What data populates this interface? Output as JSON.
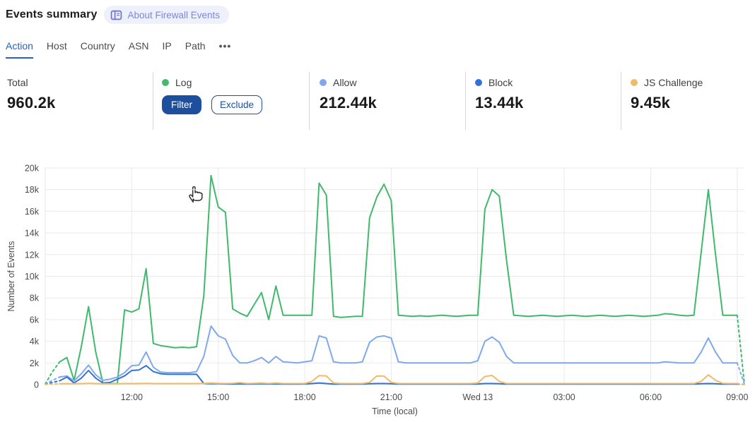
{
  "header": {
    "title": "Events summary",
    "about_label": "About Firewall Events"
  },
  "tabs": {
    "items": [
      "Action",
      "Host",
      "Country",
      "ASN",
      "IP",
      "Path"
    ],
    "more": "•••",
    "active": "Action"
  },
  "stats": {
    "total": {
      "label": "Total",
      "value": "960.2k"
    },
    "log": {
      "label": "Log",
      "color": "#45b96e",
      "filter_label": "Filter",
      "exclude_label": "Exclude"
    },
    "allow": {
      "label": "Allow",
      "color": "#7fa9ec",
      "value": "212.44k"
    },
    "block": {
      "label": "Block",
      "color": "#3372d4",
      "value": "13.44k"
    },
    "js_challenge": {
      "label": "JS Challenge",
      "color": "#f0bb69",
      "value": "9.45k"
    }
  },
  "icons": {
    "about": "book-icon",
    "tabs_overflow": "ellipsis-icon",
    "pointer": "hand-cursor-icon",
    "legend": "color-dot"
  },
  "colors": {
    "accent_blue": "#2661c5",
    "button_navy": "#1d4f9c",
    "grid": "#e9e9e9",
    "axis_text": "#4a4a4a",
    "divider": "#d8d8d8",
    "badge_bg": "#eef0fb",
    "badge_text": "#7d86e0"
  },
  "chart_data": {
    "type": "line",
    "title": "",
    "xlabel": "Time (local)",
    "ylabel": "Number of Events",
    "values_unit": "thousands",
    "ylim": [
      0,
      20
    ],
    "yticks": [
      {
        "v": 0,
        "label": "0"
      },
      {
        "v": 2,
        "label": "2k"
      },
      {
        "v": 4,
        "label": "4k"
      },
      {
        "v": 6,
        "label": "6k"
      },
      {
        "v": 8,
        "label": "8k"
      },
      {
        "v": 10,
        "label": "10k"
      },
      {
        "v": 12,
        "label": "12k"
      },
      {
        "v": 14,
        "label": "14k"
      },
      {
        "v": 16,
        "label": "16k"
      },
      {
        "v": 18,
        "label": "18k"
      },
      {
        "v": 20,
        "label": "20k"
      }
    ],
    "x_start": "09:00",
    "x_step_min": 15,
    "x_total_min": 1455,
    "xticks": [
      {
        "label": "12:00",
        "min": 180
      },
      {
        "label": "15:00",
        "min": 360
      },
      {
        "label": "18:00",
        "min": 540
      },
      {
        "label": "21:00",
        "min": 720
      },
      {
        "label": "Wed 13",
        "min": 900
      },
      {
        "label": "03:00",
        "min": 1080
      },
      {
        "label": "06:00",
        "min": 1260
      },
      {
        "label": "09:00",
        "min": 1440
      }
    ],
    "grid": true,
    "legend_position": "stats-row",
    "dash_head_points": 2,
    "dash_tail_points": 1,
    "series": [
      {
        "name": "Log",
        "color": "#3fb96b",
        "values": [
          0.05,
          1.2,
          2.1,
          2.5,
          0.4,
          3.5,
          7.2,
          3,
          0.15,
          0.1,
          0.1,
          6.9,
          6.7,
          7,
          10.7,
          3.8,
          3.6,
          3.5,
          3.4,
          3.45,
          3.4,
          3.5,
          8.2,
          19.3,
          16.4,
          15.9,
          7,
          6.6,
          6.3,
          7.4,
          8.5,
          6,
          9.1,
          6.4,
          6.4,
          6.4,
          6.4,
          6.4,
          18.6,
          17.5,
          6.3,
          6.2,
          6.25,
          6.3,
          6.3,
          15.4,
          17.3,
          18.5,
          17,
          6.4,
          6.35,
          6.3,
          6.35,
          6.3,
          6.35,
          6.4,
          6.35,
          6.3,
          6.35,
          6.4,
          6.4,
          16.2,
          18,
          17.4,
          11.5,
          6.4,
          6.35,
          6.3,
          6.35,
          6.4,
          6.35,
          6.3,
          6.35,
          6.4,
          6.35,
          6.3,
          6.35,
          6.4,
          6.35,
          6.3,
          6.35,
          6.4,
          6.35,
          6.3,
          6.35,
          6.4,
          6.55,
          6.5,
          6.4,
          6.35,
          6.4,
          12.2,
          18,
          12,
          6.4,
          6.4,
          6.4,
          0.05
        ]
      },
      {
        "name": "Allow",
        "color": "#7fa9ec",
        "values": [
          0.05,
          0.4,
          0.7,
          0.8,
          0.35,
          1,
          1.8,
          0.9,
          0.4,
          0.5,
          0.7,
          1.1,
          1.75,
          1.8,
          3,
          1.6,
          1.15,
          1.1,
          1.1,
          1.1,
          1.1,
          1.2,
          2.6,
          5.4,
          4.5,
          4.2,
          2.7,
          2,
          2,
          2.2,
          2.5,
          2,
          2.6,
          2.1,
          2.05,
          2,
          2.1,
          2.2,
          4.5,
          4.3,
          2.1,
          2,
          2,
          2,
          2.1,
          3.9,
          4.4,
          4.5,
          4.3,
          2.1,
          2,
          2,
          2,
          2,
          2,
          2,
          2,
          2,
          2,
          2,
          2.2,
          4,
          4.4,
          3.9,
          2.6,
          2,
          2,
          2,
          2,
          2,
          2,
          2,
          2,
          2,
          2,
          2,
          2,
          2,
          2,
          2,
          2,
          2,
          2,
          2,
          2,
          2,
          2.1,
          2.05,
          2,
          2,
          2,
          3,
          4.3,
          3,
          2,
          2,
          2,
          0.05
        ]
      },
      {
        "name": "Block",
        "color": "#3372d4",
        "values": [
          0.02,
          0.2,
          0.35,
          0.7,
          0.15,
          0.6,
          1.3,
          0.6,
          0.15,
          0.2,
          0.5,
          0.8,
          1.3,
          1.35,
          1.75,
          1.2,
          1,
          0.95,
          0.95,
          0.95,
          0.95,
          0.95,
          0.1,
          0.08,
          0.08,
          0.06,
          0.05,
          0.07,
          0.05,
          0.06,
          0.08,
          0.05,
          0.07,
          0.05,
          0.05,
          0.05,
          0.06,
          0.1,
          0.15,
          0.1,
          0.05,
          0.05,
          0.05,
          0.05,
          0.05,
          0.08,
          0.1,
          0.1,
          0.08,
          0.05,
          0.05,
          0.05,
          0.05,
          0.05,
          0.05,
          0.05,
          0.05,
          0.05,
          0.05,
          0.05,
          0.06,
          0.1,
          0.1,
          0.08,
          0.05,
          0.05,
          0.05,
          0.05,
          0.05,
          0.05,
          0.05,
          0.05,
          0.05,
          0.05,
          0.05,
          0.05,
          0.05,
          0.05,
          0.05,
          0.05,
          0.05,
          0.05,
          0.05,
          0.05,
          0.05,
          0.05,
          0.05,
          0.05,
          0.05,
          0.05,
          0.05,
          0.08,
          0.1,
          0.08,
          0.05,
          0.05,
          0.05,
          0.02
        ]
      },
      {
        "name": "JS Challenge",
        "color": "#f0bb69",
        "values": [
          0.02,
          0.05,
          0.08,
          0.1,
          0.08,
          0.1,
          0.12,
          0.1,
          0.08,
          0.08,
          0.08,
          0.1,
          0.1,
          0.1,
          0.12,
          0.1,
          0.1,
          0.1,
          0.1,
          0.1,
          0.1,
          0.1,
          0.12,
          0.15,
          0.12,
          0.1,
          0.12,
          0.18,
          0.1,
          0.12,
          0.15,
          0.1,
          0.15,
          0.1,
          0.1,
          0.1,
          0.1,
          0.3,
          0.83,
          0.8,
          0.15,
          0.1,
          0.1,
          0.1,
          0.1,
          0.2,
          0.8,
          0.78,
          0.2,
          0.1,
          0.1,
          0.1,
          0.1,
          0.1,
          0.1,
          0.1,
          0.1,
          0.1,
          0.1,
          0.1,
          0.15,
          0.75,
          0.85,
          0.3,
          0.1,
          0.1,
          0.1,
          0.1,
          0.1,
          0.1,
          0.1,
          0.1,
          0.1,
          0.1,
          0.1,
          0.1,
          0.1,
          0.1,
          0.1,
          0.1,
          0.1,
          0.1,
          0.1,
          0.1,
          0.1,
          0.1,
          0.1,
          0.1,
          0.1,
          0.1,
          0.1,
          0.3,
          0.9,
          0.4,
          0.12,
          0.1,
          0.1,
          0.02
        ]
      }
    ]
  }
}
